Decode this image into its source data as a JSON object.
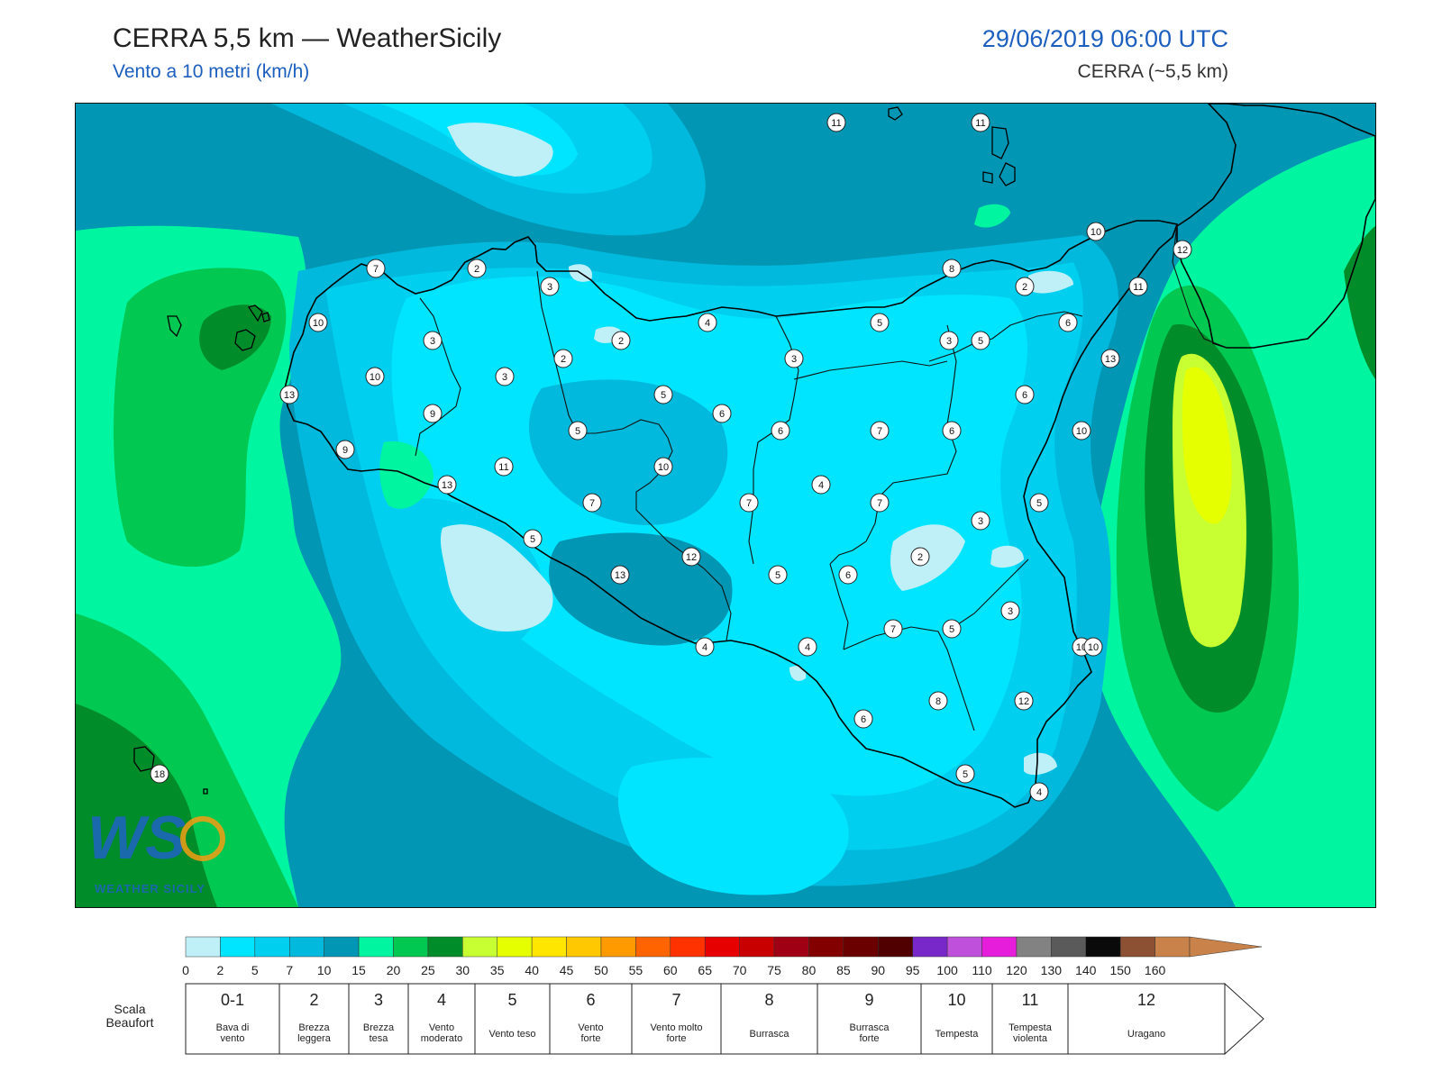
{
  "header": {
    "title": "CERRA 5,5 km — WeatherSicily",
    "subtitle": "Vento a 10 metri (km/h)",
    "datetime": "29/06/2019 06:00 UTC",
    "model": "CERRA (~5,5 km)"
  },
  "logo": {
    "letters": "WS",
    "text": "WEATHER SICILY"
  },
  "map": {
    "station_values": [
      11,
      11,
      10,
      12,
      7,
      2,
      3,
      8,
      2,
      11,
      10,
      4,
      5,
      6,
      3,
      2,
      5,
      13,
      10,
      3,
      13,
      2,
      3,
      9,
      3,
      5,
      6,
      6,
      5,
      6,
      7,
      6,
      10,
      9,
      11,
      10,
      10,
      4,
      13,
      7,
      7,
      7,
      5,
      3,
      5,
      12,
      2,
      5,
      6,
      13,
      3,
      7,
      5,
      4,
      4,
      10,
      8,
      12,
      6,
      5,
      4,
      18
    ]
  },
  "legend": {
    "colors": [
      "#bff0f8",
      "#00e5ff",
      "#00cfef",
      "#00b9dc",
      "#0096b4",
      "#00f5a0",
      "#00c850",
      "#008c28",
      "#c8ff32",
      "#e6ff00",
      "#ffe600",
      "#ffc800",
      "#ff9b00",
      "#ff6400",
      "#ff3200",
      "#e60000",
      "#c80000",
      "#a00014",
      "#820000",
      "#6a0000",
      "#500000",
      "#7828c8",
      "#be50dc",
      "#e61edc",
      "#828282",
      "#5a5a5a",
      "#0a0a0a",
      "#8c5032",
      "#c8824a"
    ],
    "ticks": [
      "0",
      "2",
      "5",
      "7",
      "10",
      "15",
      "20",
      "25",
      "30",
      "35",
      "40",
      "45",
      "50",
      "55",
      "60",
      "65",
      "70",
      "75",
      "80",
      "85",
      "90",
      "95",
      "100",
      "110",
      "120",
      "130",
      "140",
      "150",
      "160"
    ]
  },
  "beaufort": {
    "label_line1": "Scala",
    "label_line2": "Beaufort",
    "cells": [
      {
        "num": "0-1",
        "desc1": "Bava di",
        "desc2": "vento"
      },
      {
        "num": "2",
        "desc1": "Brezza",
        "desc2": "leggera"
      },
      {
        "num": "3",
        "desc1": "Brezza",
        "desc2": "tesa"
      },
      {
        "num": "4",
        "desc1": "Vento",
        "desc2": "moderato"
      },
      {
        "num": "5",
        "desc1": "Vento teso",
        "desc2": ""
      },
      {
        "num": "6",
        "desc1": "Vento",
        "desc2": "forte"
      },
      {
        "num": "7",
        "desc1": "Vento molto",
        "desc2": "forte"
      },
      {
        "num": "8",
        "desc1": "Burrasca",
        "desc2": ""
      },
      {
        "num": "9",
        "desc1": "Burrasca",
        "desc2": "forte"
      },
      {
        "num": "10",
        "desc1": "Tempesta",
        "desc2": ""
      },
      {
        "num": "11",
        "desc1": "Tempesta",
        "desc2": "violenta"
      },
      {
        "num": "12",
        "desc1": "Uragano",
        "desc2": ""
      }
    ]
  }
}
